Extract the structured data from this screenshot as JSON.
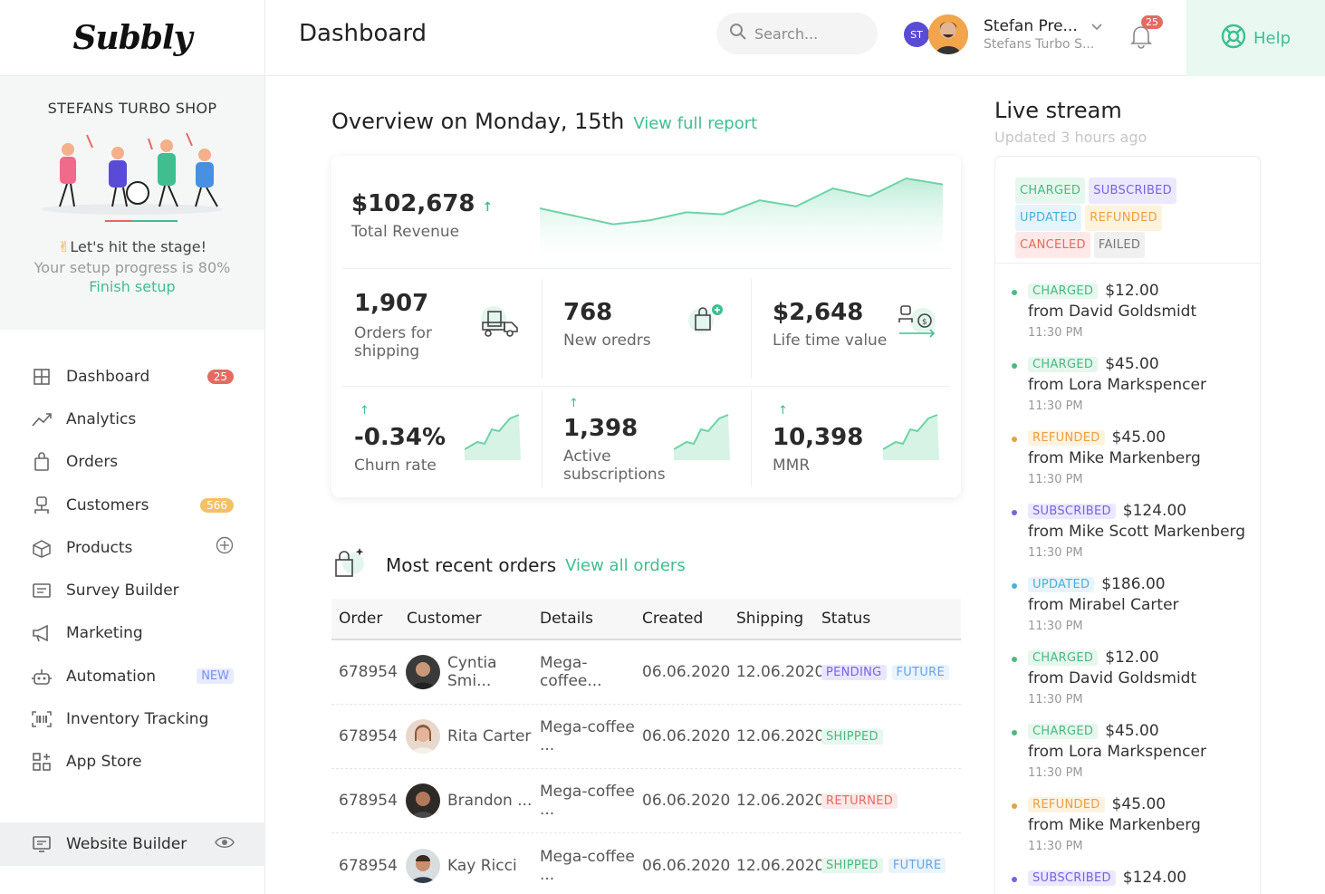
{
  "logo": "Subbly",
  "header": {
    "title": "Dashboard",
    "search_placeholder": "Search...",
    "user_initials": "ST",
    "user_name": "Stefan Pre...",
    "user_shop": "Stefans Turbo S...",
    "notifications": "25",
    "help": "Help"
  },
  "shop": {
    "name": "STEFANS TURBO SHOP",
    "tagline": "Let's hit the stage!",
    "progress_text": "Your setup progress is 80%",
    "finish": "Finish setup"
  },
  "nav": {
    "items": [
      {
        "label": "Dashboard",
        "icon": "dashboard-icon",
        "badge": "25"
      },
      {
        "label": "Analytics",
        "icon": "analytics-icon"
      },
      {
        "label": "Orders",
        "icon": "orders-icon"
      },
      {
        "label": "Customers",
        "icon": "customers-icon",
        "badge": "566"
      },
      {
        "label": "Products",
        "icon": "products-icon"
      },
      {
        "label": "Survey Builder",
        "icon": "survey-icon"
      },
      {
        "label": "Marketing",
        "icon": "megaphone-icon"
      },
      {
        "label": "Automation",
        "icon": "robot-icon",
        "badge": "NEW"
      },
      {
        "label": "Inventory Tracking",
        "icon": "barcode-icon"
      },
      {
        "label": "App Store",
        "icon": "app-store-icon"
      }
    ],
    "website_builder": "Website Builder"
  },
  "overview": {
    "title": "Overview on Monday, 15th",
    "report_link": "View  full report",
    "revenue": {
      "value": "$102,678",
      "label": "Total Revenue",
      "trend": "↑"
    },
    "revenue_chart": {
      "type": "area",
      "values": [
        60,
        52,
        44,
        48,
        56,
        54,
        68,
        62,
        80,
        72,
        90,
        84
      ]
    },
    "metrics": [
      {
        "value": "1,907",
        "label": "Orders for shipping"
      },
      {
        "value": "768",
        "label": "New oredrs"
      },
      {
        "value": "$2,648",
        "label": "Life time value"
      },
      {
        "value": "-0.34%",
        "label": "Churn rate",
        "trend": "↑"
      },
      {
        "value": "1,398",
        "label": "Active subscriptions",
        "trend": "↑"
      },
      {
        "value": "10,398",
        "label": "MMR",
        "trend": "↑"
      }
    ]
  },
  "orders": {
    "title": "Most recent orders",
    "link": "View  all orders",
    "columns": [
      "Order",
      "Customer",
      "Details",
      "Created",
      "Shipping",
      "Status"
    ],
    "rows": [
      {
        "order": "678954",
        "customer": "Cyntia Smi...",
        "details": "Mega-coffee...",
        "created": "06.06.2020",
        "shipping": "12.06.2020",
        "status": [
          "PENDING",
          "FUTURE"
        ]
      },
      {
        "order": "678954",
        "customer": "Rita Carter",
        "details": "Mega-coffee ...",
        "created": "06.06.2020",
        "shipping": "12.06.2020",
        "status": [
          "SHIPPED"
        ]
      },
      {
        "order": "678954",
        "customer": "Brandon ...",
        "details": "Mega-coffee ...",
        "created": "06.06.2020",
        "shipping": "12.06.2020",
        "status": [
          "RETURNED"
        ]
      },
      {
        "order": "678954",
        "customer": "Kay Ricci",
        "details": "Mega-coffee ...",
        "created": "06.06.2020",
        "shipping": "12.06.2020",
        "status": [
          "SHIPPED",
          "FUTURE"
        ]
      }
    ]
  },
  "live_stream": {
    "title": "Live stream",
    "updated": "Updated 3 hours ago",
    "legend": [
      "CHARGED",
      "SUBSCRIBED",
      "UPDATED",
      "REFUNDED",
      "CANCELED",
      "FAILED"
    ],
    "events": [
      {
        "type": "CHARGED",
        "amount": "$12.00",
        "from": "from David Goldsmidt",
        "time": "11:30 PM"
      },
      {
        "type": "CHARGED",
        "amount": "$45.00",
        "from": "from Lora Markspencer",
        "time": "11:30 PM"
      },
      {
        "type": "REFUNDED",
        "amount": "$45.00",
        "from": "from Mike Markenberg",
        "time": "11:30 PM"
      },
      {
        "type": "SUBSCRIBED",
        "amount": "$124.00",
        "from": "from Mike Scott Markenberg",
        "time": "11:30 PM"
      },
      {
        "type": "UPDATED",
        "amount": "$186.00",
        "from": "from Mirabel Carter",
        "time": "11:30 PM"
      },
      {
        "type": "CHARGED",
        "amount": "$12.00",
        "from": "from David Goldsmidt",
        "time": "11:30 PM"
      },
      {
        "type": "CHARGED",
        "amount": "$45.00",
        "from": "from Lora Markspencer",
        "time": "11:30 PM"
      },
      {
        "type": "REFUNDED",
        "amount": "$45.00",
        "from": "from Mike Markenberg",
        "time": "11:30 PM"
      },
      {
        "type": "SUBSCRIBED",
        "amount": "$124.00",
        "from": "",
        "time": ""
      }
    ]
  },
  "colors": {
    "accent": "#3fbf8f",
    "danger": "#e46a62",
    "brand_purple": "#5a4bd6"
  }
}
